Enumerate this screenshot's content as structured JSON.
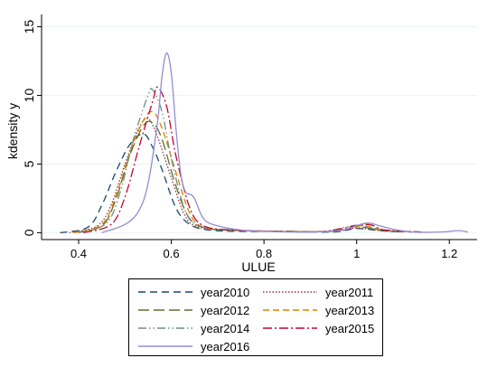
{
  "chart_data": {
    "type": "line",
    "title": "",
    "xlabel": "ULUE",
    "ylabel": "kdensity y",
    "xlim": [
      0.32,
      1.26
    ],
    "ylim": [
      -0.5,
      15.5
    ],
    "xticks": [
      0.4,
      0.6,
      0.8,
      1,
      1.2
    ],
    "xtick_labels": [
      "0.4",
      "0.6",
      "0.8",
      "1",
      "1.2"
    ],
    "yticks": [
      0,
      5,
      10,
      15
    ],
    "ytick_labels": [
      "0",
      "5",
      "10",
      "15"
    ],
    "grid": "horizontal",
    "legend_position": "bottom",
    "series": [
      {
        "name": "year2010",
        "color": "#1a476f",
        "dash": "8,5",
        "points": [
          [
            0.36,
            0
          ],
          [
            0.42,
            0.4
          ],
          [
            0.45,
            2.0
          ],
          [
            0.48,
            4.4
          ],
          [
            0.51,
            6.4
          ],
          [
            0.54,
            7.2
          ],
          [
            0.56,
            6.2
          ],
          [
            0.58,
            4.6
          ],
          [
            0.61,
            1.8
          ],
          [
            0.64,
            0.6
          ],
          [
            0.68,
            0.2
          ],
          [
            0.75,
            0.1
          ],
          [
            0.85,
            0.1
          ],
          [
            0.95,
            0.05
          ],
          [
            1.0,
            0.3
          ],
          [
            1.05,
            0.15
          ],
          [
            1.1,
            0.05
          ]
        ]
      },
      {
        "name": "year2011",
        "color": "#90353b",
        "dash": "1.5,2",
        "points": [
          [
            0.38,
            0
          ],
          [
            0.44,
            0.5
          ],
          [
            0.47,
            2.0
          ],
          [
            0.5,
            5.0
          ],
          [
            0.53,
            7.6
          ],
          [
            0.55,
            8.3
          ],
          [
            0.57,
            7.0
          ],
          [
            0.6,
            4.0
          ],
          [
            0.63,
            1.2
          ],
          [
            0.66,
            0.4
          ],
          [
            0.72,
            0.2
          ],
          [
            0.82,
            0.1
          ],
          [
            0.95,
            0.1
          ],
          [
            1.0,
            0.35
          ],
          [
            1.05,
            0.15
          ],
          [
            1.1,
            0.05
          ]
        ]
      },
      {
        "name": "year2012",
        "color": "#55752f",
        "dash": "12,5",
        "points": [
          [
            0.39,
            0
          ],
          [
            0.45,
            0.5
          ],
          [
            0.48,
            2.4
          ],
          [
            0.51,
            5.6
          ],
          [
            0.54,
            7.8
          ],
          [
            0.56,
            8.0
          ],
          [
            0.58,
            6.8
          ],
          [
            0.61,
            3.4
          ],
          [
            0.64,
            1.0
          ],
          [
            0.68,
            0.3
          ],
          [
            0.75,
            0.15
          ],
          [
            0.85,
            0.1
          ],
          [
            0.95,
            0.1
          ],
          [
            1.0,
            0.45
          ],
          [
            1.05,
            0.2
          ],
          [
            1.12,
            0.05
          ]
        ]
      },
      {
        "name": "year2013",
        "color": "#e37e00",
        "dash": "7,4",
        "points": [
          [
            0.39,
            0
          ],
          [
            0.45,
            0.6
          ],
          [
            0.48,
            2.6
          ],
          [
            0.51,
            5.8
          ],
          [
            0.54,
            8.2
          ],
          [
            0.56,
            8.8
          ],
          [
            0.58,
            7.6
          ],
          [
            0.61,
            4.4
          ],
          [
            0.64,
            1.4
          ],
          [
            0.67,
            0.4
          ],
          [
            0.74,
            0.2
          ],
          [
            0.84,
            0.1
          ],
          [
            0.95,
            0.1
          ],
          [
            1.01,
            0.5
          ],
          [
            1.06,
            0.2
          ],
          [
            1.14,
            0.05
          ]
        ]
      },
      {
        "name": "year2014",
        "color": "#6e8e84",
        "dash": "9,3,1.5,3,1.5,3",
        "points": [
          [
            0.4,
            0
          ],
          [
            0.46,
            0.7
          ],
          [
            0.49,
            3.0
          ],
          [
            0.52,
            7.0
          ],
          [
            0.55,
            10.0
          ],
          [
            0.56,
            10.4
          ],
          [
            0.58,
            8.8
          ],
          [
            0.6,
            5.4
          ],
          [
            0.63,
            1.6
          ],
          [
            0.66,
            0.5
          ],
          [
            0.72,
            0.2
          ],
          [
            0.82,
            0.1
          ],
          [
            0.93,
            0.1
          ],
          [
            1.0,
            0.55
          ],
          [
            1.05,
            0.2
          ],
          [
            1.12,
            0.05
          ]
        ]
      },
      {
        "name": "year2015",
        "color": "#c10534",
        "dash": "10,3,2,3",
        "points": [
          [
            0.41,
            0
          ],
          [
            0.47,
            0.6
          ],
          [
            0.5,
            2.6
          ],
          [
            0.53,
            6.2
          ],
          [
            0.56,
            9.6
          ],
          [
            0.57,
            10.6
          ],
          [
            0.59,
            9.2
          ],
          [
            0.61,
            5.6
          ],
          [
            0.64,
            1.8
          ],
          [
            0.67,
            0.5
          ],
          [
            0.73,
            0.2
          ],
          [
            0.82,
            0.1
          ],
          [
            0.93,
            0.1
          ],
          [
            1.02,
            0.6
          ],
          [
            1.06,
            0.2
          ],
          [
            1.14,
            0.05
          ]
        ]
      },
      {
        "name": "year2016",
        "color": "#938dd2",
        "dash": "",
        "points": [
          [
            0.45,
            0
          ],
          [
            0.5,
            0.6
          ],
          [
            0.53,
            1.6
          ],
          [
            0.55,
            3.6
          ],
          [
            0.57,
            8.0
          ],
          [
            0.58,
            11.4
          ],
          [
            0.59,
            13.1
          ],
          [
            0.6,
            11.6
          ],
          [
            0.61,
            7.6
          ],
          [
            0.62,
            4.4
          ],
          [
            0.63,
            3.0
          ],
          [
            0.64,
            2.8
          ],
          [
            0.65,
            2.5
          ],
          [
            0.67,
            1.0
          ],
          [
            0.7,
            0.5
          ],
          [
            0.75,
            0.2
          ],
          [
            0.8,
            0.1
          ],
          [
            0.9,
            0.05
          ],
          [
            0.97,
            0.2
          ],
          [
            1.02,
            0.7
          ],
          [
            1.05,
            0.5
          ],
          [
            1.08,
            0.25
          ],
          [
            1.12,
            0.05
          ],
          [
            1.18,
            0.05
          ],
          [
            1.22,
            0.15
          ],
          [
            1.24,
            0.05
          ]
        ]
      }
    ]
  }
}
